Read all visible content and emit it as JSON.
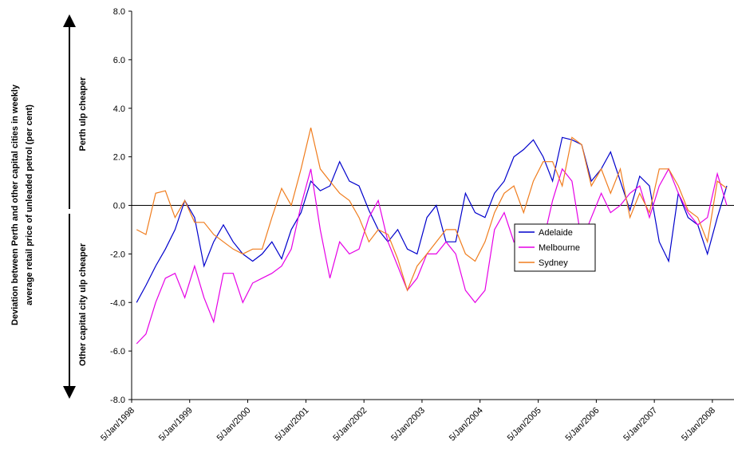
{
  "chart_data": {
    "type": "line",
    "ylabel": [
      "Deviation between Perth and other capital cities in weekly",
      "average retail price of unleaded petrol (per cent)"
    ],
    "annotations": [
      "Perth ulp cheaper",
      "Other capital city ulp cheaper"
    ],
    "x": [
      "1998-02-05",
      "1998-04-05",
      "1998-06-05",
      "1998-08-05",
      "1998-10-05",
      "1998-12-05",
      "1999-02-05",
      "1999-04-05",
      "1999-06-05",
      "1999-08-05",
      "1999-10-05",
      "1999-12-05",
      "2000-02-05",
      "2000-04-05",
      "2000-06-05",
      "2000-08-05",
      "2000-10-05",
      "2000-12-05",
      "2001-02-05",
      "2001-04-05",
      "2001-06-05",
      "2001-08-05",
      "2001-10-05",
      "2001-12-05",
      "2002-02-05",
      "2002-04-05",
      "2002-06-05",
      "2002-08-05",
      "2002-10-05",
      "2002-12-05",
      "2003-02-05",
      "2003-04-05",
      "2003-06-05",
      "2003-08-05",
      "2003-10-05",
      "2003-12-05",
      "2004-02-05",
      "2004-04-05",
      "2004-06-05",
      "2004-08-05",
      "2004-10-05",
      "2004-12-05",
      "2005-02-05",
      "2005-04-05",
      "2005-06-05",
      "2005-08-05",
      "2005-10-05",
      "2005-12-05",
      "2006-02-05",
      "2006-04-05",
      "2006-06-05",
      "2006-08-05",
      "2006-10-05",
      "2006-12-05",
      "2007-02-05",
      "2007-04-05",
      "2007-06-05",
      "2007-08-05",
      "2007-10-05",
      "2007-12-05",
      "2008-02-05",
      "2008-04-05"
    ],
    "series": [
      {
        "name": "Adelaide",
        "color": "#0000cc",
        "values": [
          -4.0,
          -3.3,
          -2.5,
          -1.8,
          -1.0,
          0.2,
          -0.5,
          -2.5,
          -1.5,
          -0.8,
          -1.5,
          -2.0,
          -2.3,
          -2.0,
          -1.5,
          -2.2,
          -1.0,
          -0.3,
          1.0,
          0.6,
          0.8,
          1.8,
          1.0,
          0.8,
          -0.2,
          -1.0,
          -1.5,
          -1.0,
          -1.8,
          -2.0,
          -0.5,
          0.0,
          -1.5,
          -1.5,
          0.5,
          -0.3,
          -0.5,
          0.5,
          1.0,
          2.0,
          2.3,
          2.7,
          2.0,
          1.0,
          2.8,
          2.7,
          2.5,
          1.0,
          1.5,
          2.2,
          1.0,
          -0.2,
          1.2,
          0.8,
          -1.5,
          -2.3,
          0.5,
          -0.5,
          -0.8,
          -2.0,
          -0.5,
          0.8
        ]
      },
      {
        "name": "Melbourne",
        "color": "#e600e6",
        "values": [
          -5.7,
          -5.3,
          -4.0,
          -3.0,
          -2.8,
          -3.8,
          -2.5,
          -3.8,
          -4.8,
          -2.8,
          -2.8,
          -4.0,
          -3.2,
          -3.0,
          -2.8,
          -2.5,
          -1.8,
          0.0,
          1.5,
          -1.0,
          -3.0,
          -1.5,
          -2.0,
          -1.8,
          -0.5,
          0.2,
          -1.5,
          -2.5,
          -3.5,
          -3.0,
          -2.0,
          -2.0,
          -1.5,
          -2.0,
          -3.5,
          -4.0,
          -3.5,
          -1.0,
          -0.3,
          -1.5,
          -1.0,
          -2.3,
          -1.5,
          0.2,
          1.5,
          1.0,
          -1.5,
          -0.5,
          0.5,
          -0.3,
          0.0,
          0.5,
          0.8,
          -0.5,
          0.8,
          1.5,
          0.5,
          -0.3,
          -0.8,
          -0.5,
          1.3,
          0.0
        ]
      },
      {
        "name": "Sydney",
        "color": "#f07d1e",
        "values": [
          -1.0,
          -1.2,
          0.5,
          0.6,
          -0.5,
          0.2,
          -0.7,
          -0.7,
          -1.2,
          -1.5,
          -1.8,
          -2.0,
          -1.8,
          -1.8,
          -0.5,
          0.7,
          0.0,
          1.5,
          3.2,
          1.5,
          1.0,
          0.5,
          0.2,
          -0.5,
          -1.5,
          -1.0,
          -1.2,
          -2.2,
          -3.5,
          -2.5,
          -2.0,
          -1.5,
          -1.0,
          -1.0,
          -2.0,
          -2.3,
          -1.5,
          -0.3,
          0.5,
          0.8,
          -0.3,
          1.0,
          1.8,
          1.8,
          0.8,
          2.8,
          2.5,
          0.8,
          1.5,
          0.5,
          1.5,
          -0.5,
          0.5,
          -0.3,
          1.5,
          1.5,
          0.8,
          -0.2,
          -0.5,
          -1.5,
          1.0,
          0.7
        ]
      }
    ],
    "xlim": [
      "1998-01-05",
      "2008-05-20"
    ],
    "xticks": [
      {
        "value": "1998-01-05",
        "label": "5/Jan/1998"
      },
      {
        "value": "1999-01-05",
        "label": "5/Jan/1999"
      },
      {
        "value": "2000-01-05",
        "label": "5/Jan/2000"
      },
      {
        "value": "2001-01-05",
        "label": "5/Jan/2001"
      },
      {
        "value": "2002-01-05",
        "label": "5/Jan/2002"
      },
      {
        "value": "2003-01-05",
        "label": "5/Jan/2003"
      },
      {
        "value": "2004-01-05",
        "label": "5/Jan/2004"
      },
      {
        "value": "2005-01-05",
        "label": "5/Jan/2005"
      },
      {
        "value": "2006-01-05",
        "label": "5/Jan/2006"
      },
      {
        "value": "2007-01-05",
        "label": "5/Jan/2007"
      },
      {
        "value": "2008-01-05",
        "label": "5/Jan/2008"
      }
    ],
    "ylim": [
      -8,
      8
    ],
    "yticks": [
      {
        "value": -8,
        "label": "-8.0"
      },
      {
        "value": -6,
        "label": "-6.0"
      },
      {
        "value": -4,
        "label": "-4.0"
      },
      {
        "value": -2,
        "label": "-2.0"
      },
      {
        "value": 0,
        "label": "0.0"
      },
      {
        "value": 2,
        "label": "2.0"
      },
      {
        "value": 4,
        "label": "4.0"
      },
      {
        "value": 6,
        "label": "6.0"
      },
      {
        "value": 8,
        "label": "8.0"
      }
    ]
  }
}
